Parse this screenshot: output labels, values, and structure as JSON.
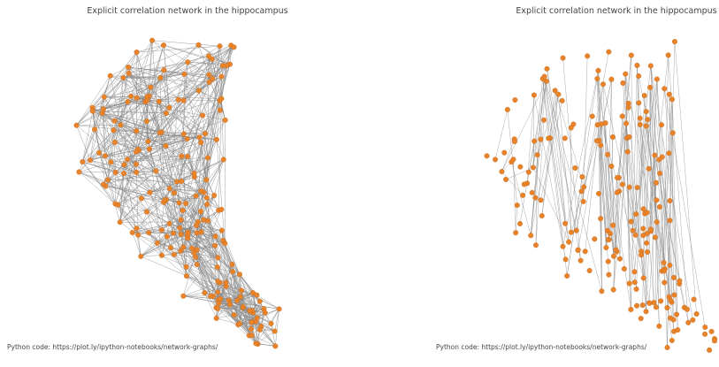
{
  "panels": [
    {
      "title": "Explicit correlation network in the hippocampus",
      "annotation": "Python code:  https://plot.ly/ipython-notebooks/network-graphs/"
    },
    {
      "title": "Explicit correlation network in the hippocampus",
      "annotation": "Python code:  https://plot.ly/ipython-notebooks/network-graphs/"
    }
  ]
}
